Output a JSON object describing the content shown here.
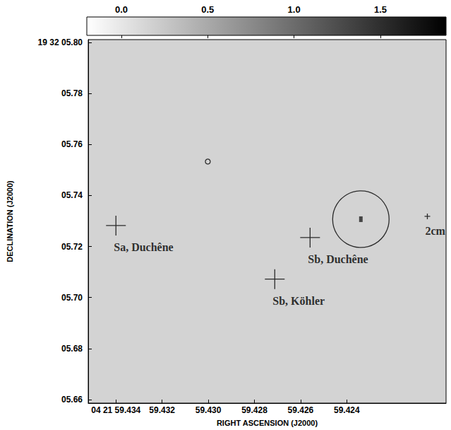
{
  "chart_data": {
    "type": "image",
    "xlabel": "RIGHT ASCENSION (J2000)",
    "ylabel": "DECLINATION (J2000)",
    "xlim": [
      59.4352,
      59.4197
    ],
    "xticks": [
      {
        "value": 59.434,
        "label": "04 21 59.434"
      },
      59.432,
      {
        "value": 59.43,
        "label": "59.430"
      },
      59.428,
      59.426,
      59.424
    ],
    "ylim": [
      5.6586,
      5.8011
    ],
    "yticks": [
      {
        "value": 5.8,
        "label": "19 32 05.80"
      },
      {
        "value": 5.78,
        "label": "05.78"
      },
      {
        "value": 5.76,
        "label": "05.76"
      },
      {
        "value": 5.74,
        "label": "05.74"
      },
      {
        "value": 5.72,
        "label": "05.72"
      },
      {
        "value": 5.7,
        "label": "05.70"
      },
      {
        "value": 5.68,
        "label": "05.68"
      },
      {
        "value": 5.66,
        "label": "05.66"
      }
    ],
    "colorbar": {
      "range": [
        -0.2,
        1.88
      ],
      "ticks": [
        {
          "value": 0,
          "label": "0.0"
        },
        0.5,
        {
          "value": 1,
          "label": "1.0"
        },
        1.5
      ]
    },
    "source": {
      "ra": 59.42339,
      "dec": 5.7307,
      "peak": 1.6
    },
    "points": [
      {
        "ra": 59.434,
        "dec": 5.7282,
        "marker": "plus",
        "label": "Sa, Duchêne"
      },
      {
        "ra": 59.42559,
        "dec": 5.7235,
        "marker": "plus",
        "label": "Sb, Duchêne"
      },
      {
        "ra": 59.42712,
        "dec": 5.7072,
        "marker": "plus",
        "label": "Sb, Köhler"
      },
      {
        "ra": 59.42051,
        "dec": 5.7318,
        "marker": "small_plus",
        "label": "2cm"
      },
      {
        "ra": 59.42339,
        "dec": 5.7307,
        "marker": "circle"
      },
      {
        "ra": 59.43002,
        "dec": 5.7533,
        "marker": "small_circle"
      }
    ]
  }
}
